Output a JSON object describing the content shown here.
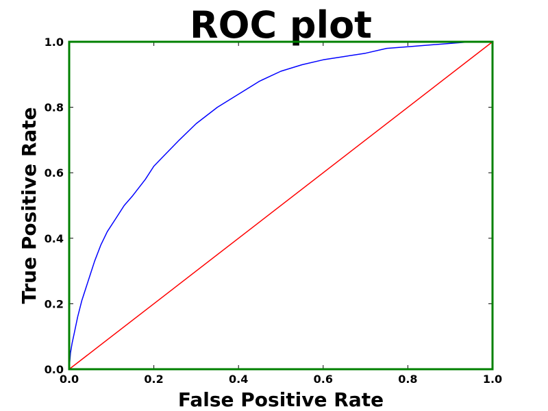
{
  "chart_data": {
    "type": "line",
    "title": "ROC plot",
    "xlabel": "False Positive Rate",
    "ylabel": "True Positive Rate",
    "xlim": [
      0.0,
      1.0
    ],
    "ylim": [
      0.0,
      1.0
    ],
    "xticks": [
      "0.0",
      "0.2",
      "0.4",
      "0.6",
      "0.8",
      "1.0"
    ],
    "yticks": [
      "0.0",
      "0.2",
      "0.4",
      "0.6",
      "0.8",
      "1.0"
    ],
    "grid": false,
    "legend": false,
    "frame_color": "#008000",
    "series": [
      {
        "color": "#0000ff",
        "x": [
          0.0,
          0.003,
          0.007,
          0.012,
          0.02,
          0.03,
          0.04,
          0.05,
          0.06,
          0.075,
          0.09,
          0.11,
          0.13,
          0.15,
          0.18,
          0.2,
          0.23,
          0.26,
          0.3,
          0.35,
          0.4,
          0.45,
          0.5,
          0.55,
          0.6,
          0.65,
          0.7,
          0.75,
          0.8,
          0.85,
          0.9,
          0.95,
          1.0
        ],
        "y": [
          0.0,
          0.05,
          0.08,
          0.11,
          0.16,
          0.21,
          0.25,
          0.29,
          0.33,
          0.38,
          0.42,
          0.46,
          0.5,
          0.53,
          0.58,
          0.62,
          0.66,
          0.7,
          0.75,
          0.8,
          0.84,
          0.88,
          0.91,
          0.93,
          0.945,
          0.955,
          0.965,
          0.98,
          0.985,
          0.99,
          0.995,
          1.0,
          1.0
        ]
      },
      {
        "color": "#ff0000",
        "x": [
          0.0,
          1.0
        ],
        "y": [
          0.0,
          1.0
        ]
      }
    ]
  }
}
